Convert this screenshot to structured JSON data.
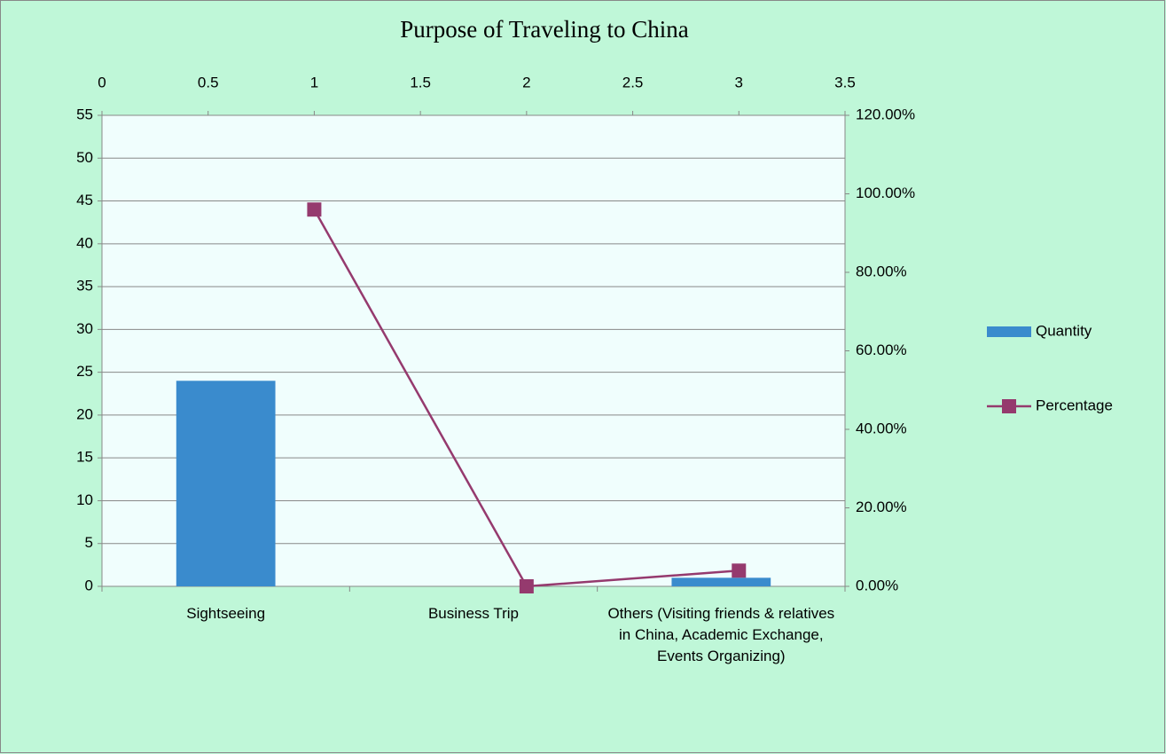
{
  "chart_data": {
    "type": "bar",
    "title": "Purpose of Traveling to China",
    "categories": [
      "Sightseeing",
      "Business Trip",
      "Others (Visiting friends & relatives in China, Academic Exchange, Events Organizing)"
    ],
    "series": [
      {
        "name": "Quantity",
        "color": "#3a8bcd",
        "values": [
          24,
          0,
          1
        ]
      },
      {
        "name": "Percentage",
        "color": "#953a6e",
        "type": "line",
        "axis": "y2",
        "x": [
          1,
          2,
          3
        ],
        "values": [
          96,
          0,
          4
        ]
      }
    ],
    "ylim": [
      0,
      55
    ],
    "yticks": [
      0,
      5,
      10,
      15,
      20,
      25,
      30,
      35,
      40,
      45,
      50,
      55
    ],
    "y2lim": [
      0,
      120
    ],
    "y2ticks": [
      {
        "value": 0,
        "label": "0.00%"
      },
      {
        "value": 20,
        "label": "20.00%"
      },
      {
        "value": 40,
        "label": "40.00%"
      },
      {
        "value": 60,
        "label": "60.00%"
      },
      {
        "value": 80,
        "label": "80.00%"
      },
      {
        "value": 100,
        "label": "100.00%"
      },
      {
        "value": 120,
        "label": "120.00%"
      }
    ],
    "x2lim": [
      0,
      3.5
    ],
    "x2ticks": [
      0,
      0.5,
      1,
      1.5,
      2,
      2.5,
      3,
      3.5
    ],
    "grid": true,
    "legend": "right"
  }
}
